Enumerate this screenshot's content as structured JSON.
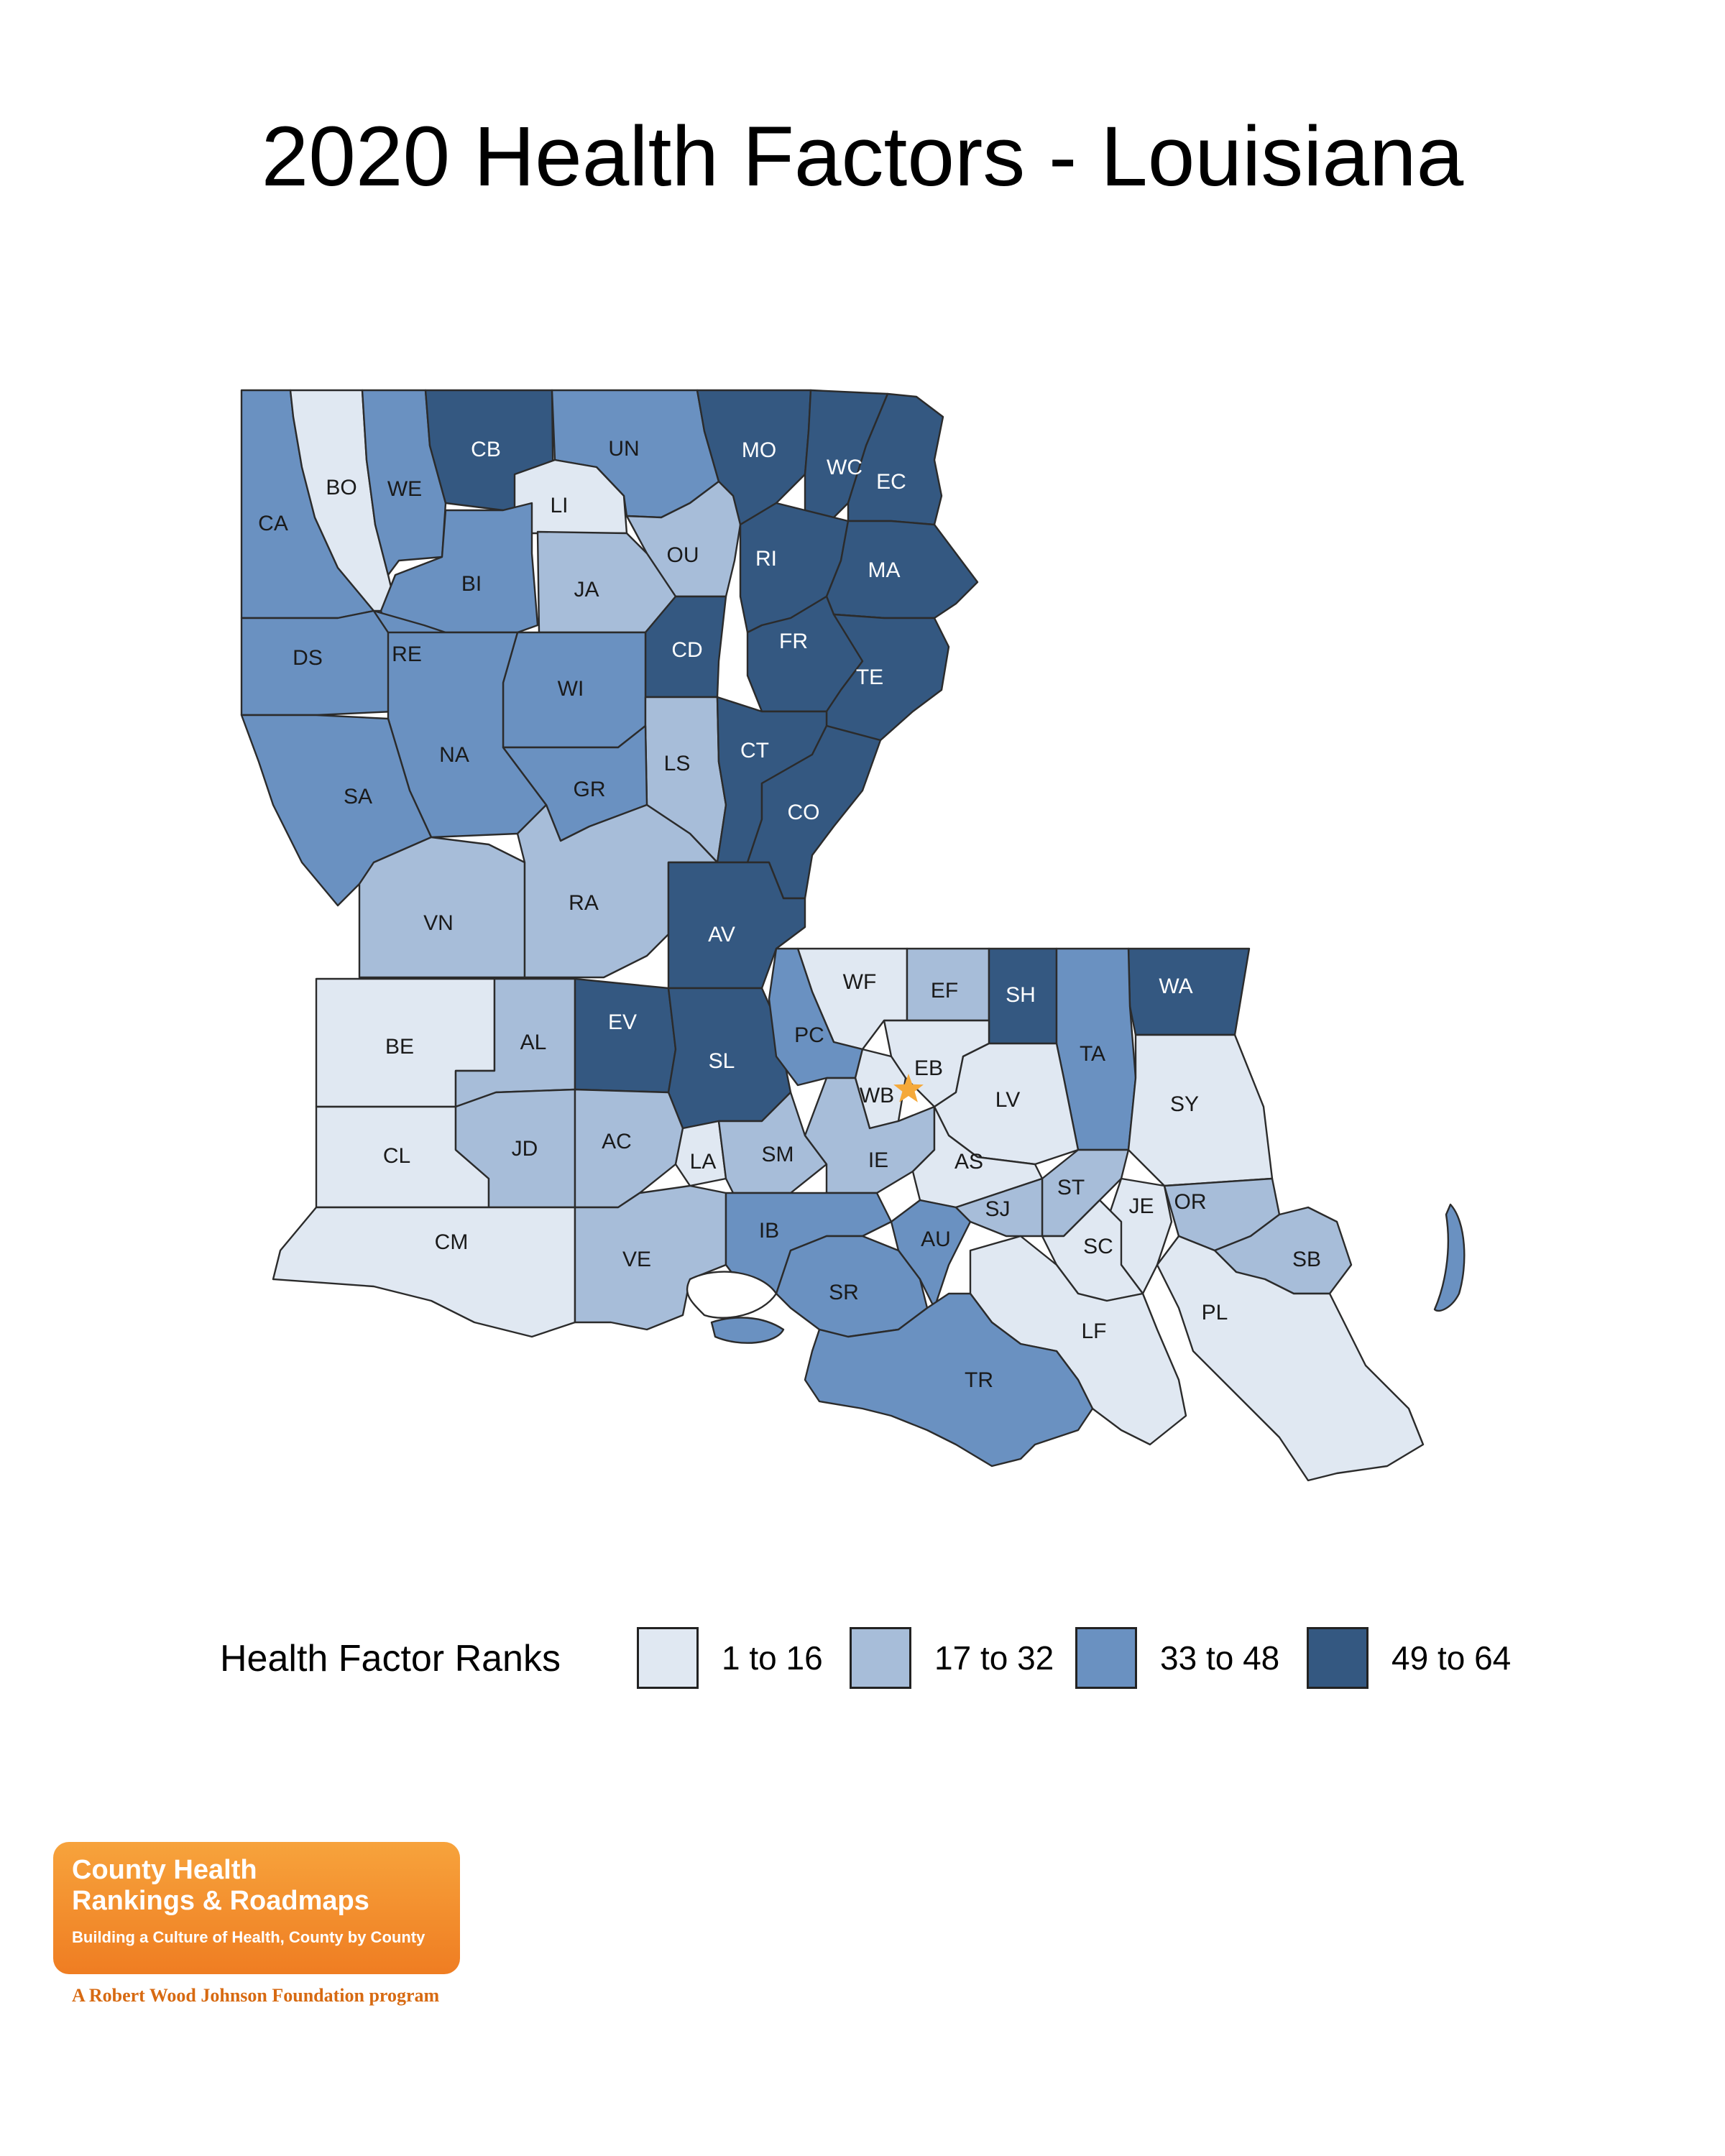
{
  "title": "2020 Health Factors - Louisiana",
  "legend": {
    "title": "Health Factor Ranks",
    "classes": [
      {
        "label": "1 to 16",
        "color": "#e0e8f2"
      },
      {
        "label": "17 to 32",
        "color": "#a7bdd9"
      },
      {
        "label": "33 to 48",
        "color": "#6a91c1"
      },
      {
        "label": "49 to 64",
        "color": "#345881"
      }
    ]
  },
  "parishes": [
    {
      "code": "CA",
      "class": 2
    },
    {
      "code": "BO",
      "class": 0
    },
    {
      "code": "WE",
      "class": 2
    },
    {
      "code": "CB",
      "class": 3
    },
    {
      "code": "UN",
      "class": 2
    },
    {
      "code": "MO",
      "class": 3
    },
    {
      "code": "WC",
      "class": 3
    },
    {
      "code": "EC",
      "class": 3
    },
    {
      "code": "LI",
      "class": 0
    },
    {
      "code": "OU",
      "class": 1
    },
    {
      "code": "RI",
      "class": 3
    },
    {
      "code": "MA",
      "class": 3
    },
    {
      "code": "BI",
      "class": 2
    },
    {
      "code": "JA",
      "class": 1
    },
    {
      "code": "DS",
      "class": 2
    },
    {
      "code": "RE",
      "class": 2
    },
    {
      "code": "CD",
      "class": 3
    },
    {
      "code": "FR",
      "class": 3
    },
    {
      "code": "TE",
      "class": 3
    },
    {
      "code": "WI",
      "class": 2
    },
    {
      "code": "NA",
      "class": 2
    },
    {
      "code": "LS",
      "class": 1
    },
    {
      "code": "CT",
      "class": 3
    },
    {
      "code": "SA",
      "class": 2
    },
    {
      "code": "GR",
      "class": 2
    },
    {
      "code": "CO",
      "class": 3
    },
    {
      "code": "VN",
      "class": 1
    },
    {
      "code": "RA",
      "class": 1
    },
    {
      "code": "AV",
      "class": 3
    },
    {
      "code": "WF",
      "class": 0
    },
    {
      "code": "EF",
      "class": 1
    },
    {
      "code": "SH",
      "class": 3
    },
    {
      "code": "WA",
      "class": 3
    },
    {
      "code": "BE",
      "class": 0
    },
    {
      "code": "AL",
      "class": 1
    },
    {
      "code": "EV",
      "class": 3
    },
    {
      "code": "SL",
      "class": 3
    },
    {
      "code": "PC",
      "class": 2
    },
    {
      "code": "TA",
      "class": 2
    },
    {
      "code": "EB",
      "class": 0
    },
    {
      "code": "WB",
      "class": 0
    },
    {
      "code": "LV",
      "class": 0
    },
    {
      "code": "SY",
      "class": 0
    },
    {
      "code": "CL",
      "class": 0
    },
    {
      "code": "JD",
      "class": 1
    },
    {
      "code": "AC",
      "class": 1
    },
    {
      "code": "LA",
      "class": 0
    },
    {
      "code": "SM",
      "class": 1
    },
    {
      "code": "IE",
      "class": 1
    },
    {
      "code": "AS",
      "class": 0
    },
    {
      "code": "ST",
      "class": 1
    },
    {
      "code": "JE",
      "class": 0
    },
    {
      "code": "OR",
      "class": 1
    },
    {
      "code": "CM",
      "class": 0
    },
    {
      "code": "VE",
      "class": 1
    },
    {
      "code": "IB",
      "class": 2
    },
    {
      "code": "AU",
      "class": 2
    },
    {
      "code": "SJ",
      "class": 1
    },
    {
      "code": "SC",
      "class": 0
    },
    {
      "code": "SB",
      "class": 1
    },
    {
      "code": "SR",
      "class": 2
    },
    {
      "code": "LF",
      "class": 0
    },
    {
      "code": "PL",
      "class": 0
    },
    {
      "code": "TR",
      "class": 2
    }
  ],
  "capital_marker": {
    "icon": "star-icon",
    "color": "#f5a93a"
  },
  "logo": {
    "line1": "County Health",
    "line2": "Rankings & Roadmaps",
    "tagline": "Building a Culture of Health, County by County",
    "sub": "A Robert Wood Johnson Foundation program"
  }
}
